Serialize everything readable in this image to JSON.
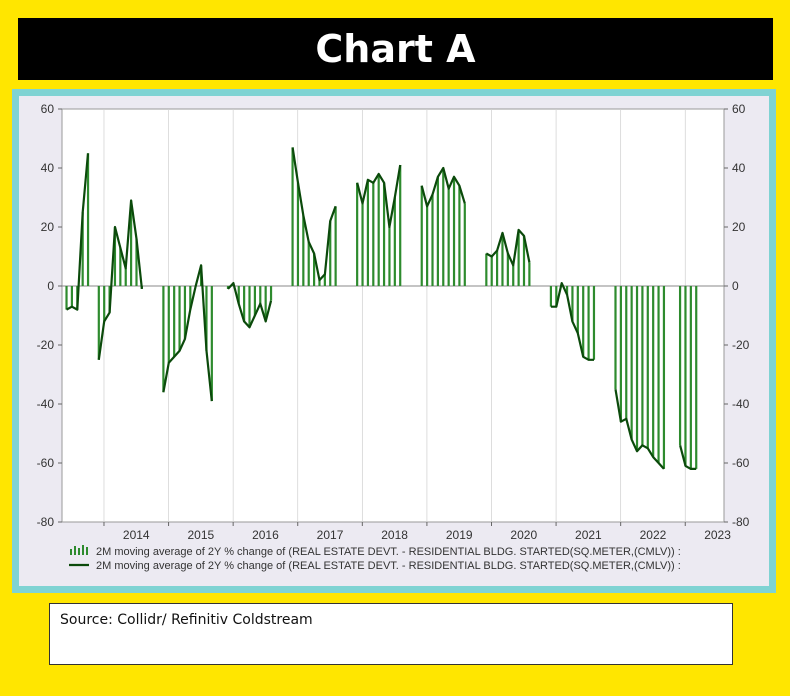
{
  "page": {
    "title": "Chart A"
  },
  "source": {
    "text": "Source:  Collidr/ Refinitiv Coldstream"
  },
  "chart_data": {
    "type": "bar",
    "title": "Chart A",
    "xlabel": "",
    "ylabel": "",
    "ylim": [
      -80,
      60
    ],
    "yticks": [
      60,
      40,
      20,
      0,
      -20,
      -40,
      -60,
      -80
    ],
    "year_labels": [
      "2014",
      "2015",
      "2016",
      "2017",
      "2018",
      "2019",
      "2020",
      "2021",
      "2022",
      "2023"
    ],
    "legend": [
      "2M moving average of 2Y % change of (REAL ESTATE DEVT. - RESIDENTIAL BLDG. STARTED(SQ.METER,(CMLV)) :",
      "2M moving average of 2Y % change of (REAL ESTATE DEVT. - RESIDENTIAL BLDG. STARTED(SQ.METER,(CMLV)) :"
    ],
    "colors": {
      "bar": "#2E8B2E",
      "line": "#0B4A0B",
      "zero": "#888888",
      "grid": "#CFCFCF"
    },
    "series": [
      {
        "name": "2M moving average of 2Y % change (bars)",
        "type": "bar",
        "segments": [
          {
            "start": 2013.42,
            "values": [
              -8,
              -7,
              -8,
              25,
              45
            ]
          },
          {
            "start": 2013.92,
            "values": [
              -25,
              -12,
              -9,
              20,
              13,
              6,
              29,
              16,
              -1
            ]
          },
          {
            "start": 2014.92,
            "values": [
              -36,
              -26,
              -24,
              -22,
              -18,
              -8,
              0,
              7,
              -22,
              -39
            ]
          },
          {
            "start": 2015.92,
            "values": [
              -1,
              1,
              -6,
              -12,
              -14,
              -10,
              -6,
              -12,
              -5
            ]
          },
          {
            "start": 2016.92,
            "values": [
              47,
              35,
              24,
              15,
              11,
              2,
              4,
              22,
              27
            ]
          },
          {
            "start": 2017.92,
            "values": [
              35,
              28,
              36,
              35,
              38,
              35,
              20,
              30,
              41
            ]
          },
          {
            "start": 2018.92,
            "values": [
              34,
              27,
              31,
              37,
              40,
              33,
              37,
              34,
              28
            ]
          },
          {
            "start": 2019.92,
            "values": [
              11,
              10,
              12,
              18,
              11,
              7,
              19,
              17,
              8
            ]
          },
          {
            "start": 2020.92,
            "values": [
              -7,
              -7,
              1,
              -3,
              -12,
              -16,
              -24,
              -25,
              -25
            ]
          },
          {
            "start": 2021.92,
            "values": [
              -35,
              -46,
              -45,
              -52,
              -56,
              -54,
              -55,
              -58,
              -60,
              -62
            ]
          },
          {
            "start": 2022.92,
            "values": [
              -54,
              -61,
              -62,
              -62
            ]
          }
        ]
      },
      {
        "name": "2M moving average of 2Y % change (line)",
        "type": "line"
      }
    ]
  }
}
